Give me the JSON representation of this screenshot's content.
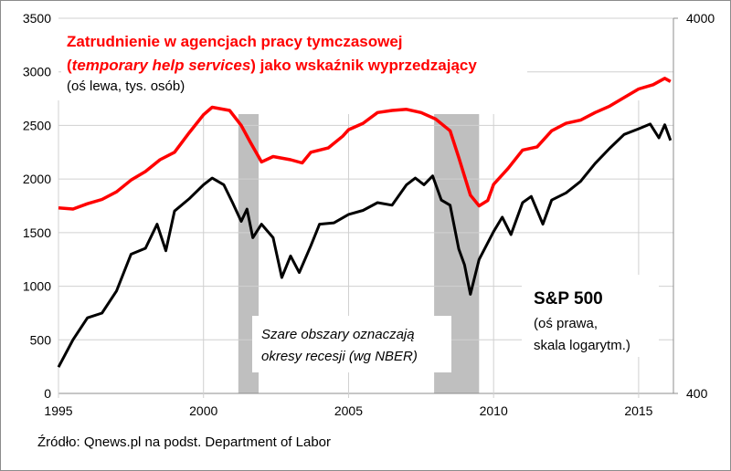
{
  "chart_data": {
    "type": "line",
    "title_line1": "Zatrudnienie w agencjach pracy tymczasowej",
    "title_line2_italic": "temporary help services",
    "title_line2_open": "(",
    "title_line2_rest": ") jako wskaźnik wyprzedzający",
    "title_line3": "(oś lewa, tys. osób)",
    "sp_label": "S&P 500",
    "sp_note1": "(oś prawa,",
    "sp_note2": "skala logarytm.)",
    "recession_note1": "Szare obszary oznaczają",
    "recession_note2": "okresy recesji (wg NBER)",
    "source": "Źródło: Qnews.pl na podst. Department of Labor",
    "xlim": [
      1995,
      2016.2
    ],
    "x_ticks": [
      "1995",
      "2000",
      "2005",
      "2010",
      "2015"
    ],
    "y_left_lim": [
      0,
      3500
    ],
    "y_left_ticks": [
      "0",
      "500",
      "1000",
      "1500",
      "2000",
      "2500",
      "3000",
      "3500"
    ],
    "y_right_lim": [
      400,
      4000
    ],
    "y_right_scale": "log",
    "y_right_ticks": [
      "400",
      "4000"
    ],
    "grid": true,
    "colors": {
      "temp_help": "#ff0000",
      "sp500": "#000000",
      "recession": "#bfbfbf",
      "grid": "#d0d0d0"
    },
    "recessions": [
      [
        2001.2,
        2001.9
      ],
      [
        2007.95,
        2009.5
      ]
    ],
    "series": [
      {
        "name": "Temporary help services (tys. osób)",
        "axis": "left",
        "x": [
          1995.0,
          1995.5,
          1996.0,
          1996.5,
          1997.0,
          1997.5,
          1998.0,
          1998.5,
          1999.0,
          1999.5,
          2000.0,
          2000.3,
          2000.9,
          2001.3,
          2001.6,
          2002.0,
          2002.4,
          2003.0,
          2003.4,
          2003.7,
          2004.3,
          2004.8,
          2005.0,
          2005.5,
          2006.0,
          2006.5,
          2007.0,
          2007.5,
          2008.0,
          2008.5,
          2008.8,
          2009.2,
          2009.5,
          2009.8,
          2010.0,
          2010.5,
          2011.0,
          2011.5,
          2012.0,
          2012.5,
          2013.0,
          2013.5,
          2014.0,
          2014.5,
          2015.0,
          2015.5,
          2015.9,
          2016.1
        ],
        "values": [
          1730,
          1720,
          1770,
          1810,
          1880,
          1990,
          2070,
          2180,
          2250,
          2430,
          2600,
          2670,
          2640,
          2500,
          2350,
          2160,
          2210,
          2180,
          2150,
          2250,
          2290,
          2400,
          2460,
          2520,
          2620,
          2640,
          2650,
          2620,
          2560,
          2450,
          2200,
          1850,
          1750,
          1800,
          1950,
          2100,
          2270,
          2300,
          2450,
          2520,
          2550,
          2620,
          2680,
          2760,
          2840,
          2880,
          2940,
          2910
        ]
      },
      {
        "name": "S&P 500",
        "axis": "right",
        "x": [
          1995.0,
          1995.5,
          1996.0,
          1996.5,
          1997.0,
          1997.5,
          1998.0,
          1998.4,
          1998.7,
          1999.0,
          1999.5,
          2000.0,
          2000.3,
          2000.7,
          2001.0,
          2001.3,
          2001.5,
          2001.7,
          2002.0,
          2002.4,
          2002.7,
          2003.0,
          2003.3,
          2003.7,
          2004.0,
          2004.5,
          2005.0,
          2005.5,
          2006.0,
          2006.5,
          2007.0,
          2007.3,
          2007.6,
          2007.9,
          2008.2,
          2008.5,
          2008.8,
          2009.0,
          2009.2,
          2009.5,
          2010.0,
          2010.3,
          2010.6,
          2011.0,
          2011.3,
          2011.7,
          2012.0,
          2012.5,
          2013.0,
          2013.5,
          2014.0,
          2014.5,
          2015.0,
          2015.4,
          2015.7,
          2015.9,
          2016.1
        ],
        "values": [
          470,
          556,
          636,
          655,
          750,
          940,
          975,
          1130,
          960,
          1225,
          1320,
          1440,
          1500,
          1440,
          1290,
          1150,
          1240,
          1040,
          1130,
          1040,
          815,
          930,
          840,
          990,
          1130,
          1140,
          1200,
          1230,
          1290,
          1270,
          1440,
          1500,
          1440,
          1520,
          1310,
          1270,
          970,
          880,
          735,
          910,
          1080,
          1180,
          1060,
          1290,
          1340,
          1130,
          1310,
          1370,
          1470,
          1640,
          1800,
          1960,
          2030,
          2090,
          1920,
          2080,
          1890
        ]
      }
    ]
  }
}
